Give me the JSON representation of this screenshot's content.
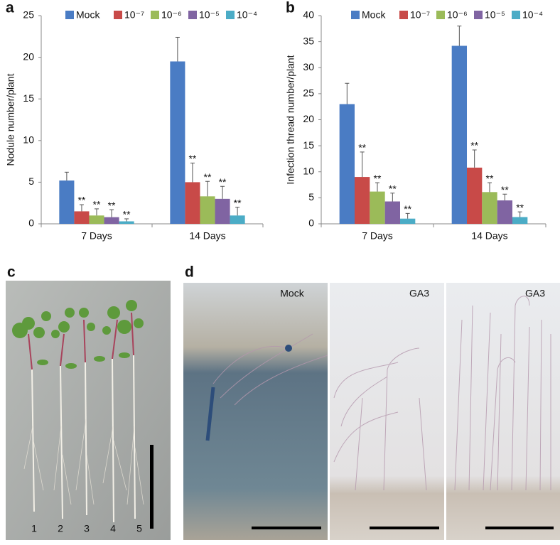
{
  "chart_data": [
    {
      "type": "bar",
      "panel_label": "a",
      "y_label": "Nodule number/plant",
      "categories": [
        "7 Days",
        "14 Days"
      ],
      "ylim": [
        0,
        25
      ],
      "yticks": [
        0,
        5,
        10,
        15,
        20,
        25
      ],
      "grid": false,
      "series": [
        {
          "name": "Mock",
          "color": "#4a7cc4",
          "values": [
            5.2,
            19.5
          ],
          "errors": [
            1.0,
            2.9
          ]
        },
        {
          "name": "10⁻⁷",
          "color": "#c84a48",
          "values": [
            1.5,
            5.0
          ],
          "errors": [
            0.8,
            2.3
          ],
          "annotations": [
            "**",
            "**"
          ]
        },
        {
          "name": "10⁻⁶",
          "color": "#9bbb59",
          "values": [
            1.0,
            3.3
          ],
          "errors": [
            0.8,
            1.8
          ],
          "annotations": [
            "**",
            "**"
          ]
        },
        {
          "name": "10⁻⁵",
          "color": "#8064a2",
          "values": [
            0.8,
            3.0
          ],
          "errors": [
            0.9,
            1.5
          ],
          "annotations": [
            "**",
            "**"
          ]
        },
        {
          "name": "10⁻⁴",
          "color": "#4bacc6",
          "values": [
            0.3,
            1.0
          ],
          "errors": [
            0.3,
            1.0
          ],
          "annotations": [
            "**",
            "**"
          ]
        }
      ]
    },
    {
      "type": "bar",
      "panel_label": "b",
      "y_label": "Infection thread number/plant",
      "categories": [
        "7 Days",
        "14 Days"
      ],
      "ylim": [
        0,
        40
      ],
      "yticks": [
        0,
        5,
        10,
        15,
        20,
        25,
        30,
        35,
        40
      ],
      "grid": false,
      "series": [
        {
          "name": "Mock",
          "color": "#4a7cc4",
          "values": [
            23,
            34.2
          ],
          "errors": [
            4.0,
            3.8
          ]
        },
        {
          "name": "10⁻⁷",
          "color": "#c84a48",
          "values": [
            9.0,
            10.8
          ],
          "errors": [
            4.8,
            3.4
          ],
          "annotations": [
            "**",
            "**"
          ]
        },
        {
          "name": "10⁻⁶",
          "color": "#9bbb59",
          "values": [
            6.2,
            6.1
          ],
          "errors": [
            1.7,
            1.8
          ],
          "annotations": [
            "**",
            "**"
          ]
        },
        {
          "name": "10⁻⁵",
          "color": "#8064a2",
          "values": [
            4.3,
            4.5
          ],
          "errors": [
            1.6,
            1.2
          ],
          "annotations": [
            "**",
            "**"
          ]
        },
        {
          "name": "10⁻⁴",
          "color": "#4bacc6",
          "values": [
            1.0,
            1.3
          ],
          "errors": [
            1.0,
            1.0
          ],
          "annotations": [
            "**",
            "**"
          ]
        }
      ]
    }
  ],
  "panel_c": {
    "label": "c",
    "plant_labels": [
      "1",
      "2",
      "3",
      "4",
      "5"
    ]
  },
  "panel_d": {
    "label": "d",
    "image_labels": [
      "Mock",
      "GA3",
      "GA3"
    ]
  }
}
